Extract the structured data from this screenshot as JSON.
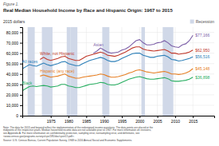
{
  "chart_data": {
    "type": "line",
    "title": "Real Median Household Income by Race and Hispanic Origin: 1967 to 2015",
    "subtitle": "Figure 1.",
    "y_label": "2015 dollars",
    "note": "Note: The data for 2013 and beyond reflect the implementation of the redesigned income questions. The data points are placed at the\nmidpoints of the respective years. Median household income data are not available prior to 1967. For more information on revisions,\nsee Appendix A. For more information on confidentiality protection, sampling error, nonsampling error, and definitions, see\n<www.census.gov/programs-surveys/cps/185/doc/cpstr15.pdf>.",
    "source": "Source: U.S. Census Bureau, Current Population Survey, 1968 to 2016 Annual Social and Economic Supplements.",
    "x": [
      1967,
      1968,
      1969,
      1970,
      1971,
      1972,
      1973,
      1974,
      1975,
      1976,
      1977,
      1978,
      1979,
      1980,
      1981,
      1982,
      1983,
      1984,
      1985,
      1986,
      1987,
      1988,
      1989,
      1990,
      1991,
      1992,
      1993,
      1994,
      1995,
      1996,
      1997,
      1998,
      1999,
      2000,
      2001,
      2002,
      2003,
      2004,
      2005,
      2006,
      2007,
      2008,
      2009,
      2010,
      2011,
      2012,
      2013,
      2014,
      2015
    ],
    "xlim": [
      1967,
      2021
    ],
    "xticks": [
      1975,
      1980,
      1985,
      1990,
      1995,
      2000,
      2005,
      2010,
      2015
    ],
    "ylim": [
      0,
      85000
    ],
    "yticks": [
      0,
      {
        "value": 10000,
        "label": "10,000"
      },
      {
        "value": 20000,
        "label": "20,000"
      },
      {
        "value": 30000,
        "label": "30,000"
      },
      {
        "value": 40000,
        "label": "40,000"
      },
      {
        "value": 50000,
        "label": "50,000"
      },
      {
        "value": 60000,
        "label": "60,000"
      },
      {
        "value": 70000,
        "label": "70,000"
      },
      {
        "value": 80000,
        "label": "80,000"
      }
    ],
    "grid": true,
    "legend": "upper right",
    "recessions": {
      "name": "Recession",
      "color": "#d0d8e8",
      "ranges": [
        [
          1969,
          1970
        ],
        [
          1973,
          1975
        ],
        [
          1980,
          1980
        ],
        [
          1981,
          1982
        ],
        [
          1990,
          1991
        ],
        [
          2001,
          2001
        ],
        [
          2007,
          2009
        ]
      ]
    },
    "series": [
      {
        "name": "Asian",
        "color": "#7b5ea7",
        "values": [
          null,
          null,
          null,
          null,
          null,
          null,
          null,
          null,
          null,
          null,
          null,
          null,
          null,
          null,
          null,
          null,
          null,
          null,
          null,
          null,
          60000,
          62000,
          65000,
          63000,
          61000,
          60000,
          60500,
          61000,
          63000,
          64000,
          66000,
          69000,
          72000,
          73000,
          70000,
          68000,
          68000,
          68500,
          70000,
          70500,
          72000,
          70000,
          67000,
          66000,
          65500,
          68000,
          69000,
          72000,
          77166
        ],
        "value_labels": [
          null,
          null,
          null,
          null,
          null,
          null,
          null,
          null,
          null,
          null,
          null,
          null,
          null,
          null,
          null,
          null,
          null,
          null,
          null,
          null,
          null,
          null,
          null,
          null,
          null,
          null,
          null,
          null,
          null,
          null,
          null,
          null,
          null,
          null,
          null,
          null,
          null,
          null,
          null,
          null,
          null,
          null,
          null,
          null,
          null,
          null,
          null,
          null,
          "$77,166"
        ]
      },
      {
        "name": "White, not Hispanic",
        "color": "#c0392b",
        "values": [
          null,
          null,
          null,
          null,
          null,
          54000,
          56000,
          54000,
          53000,
          54000,
          55000,
          56500,
          57000,
          55000,
          54000,
          53000,
          53000,
          55000,
          57000,
          58000,
          59000,
          60000,
          61000,
          60000,
          58000,
          57500,
          57000,
          58000,
          59500,
          61000,
          63000,
          65000,
          66000,
          66000,
          64000,
          63000,
          62500,
          62000,
          62500,
          63000,
          63500,
          62000,
          60000,
          60000,
          59000,
          59500,
          60000,
          61000,
          62950
        ],
        "value_labels": [
          null,
          null,
          null,
          null,
          null,
          null,
          null,
          null,
          null,
          null,
          null,
          null,
          null,
          null,
          null,
          null,
          null,
          null,
          null,
          null,
          null,
          null,
          null,
          null,
          null,
          null,
          null,
          null,
          null,
          null,
          null,
          null,
          null,
          null,
          null,
          null,
          null,
          null,
          null,
          null,
          null,
          null,
          null,
          null,
          null,
          null,
          null,
          null,
          "$62,950"
        ]
      },
      {
        "name": "All races",
        "color": "#2c7fb8",
        "values": [
          45000,
          47000,
          49000,
          48000,
          47500,
          49000,
          50500,
          49000,
          48000,
          49000,
          50000,
          51500,
          52000,
          50000,
          49000,
          48000,
          48000,
          50000,
          51500,
          53000,
          54000,
          55000,
          56000,
          55000,
          53000,
          52000,
          52000,
          53000,
          55000,
          56500,
          58000,
          59500,
          60000,
          60000,
          58000,
          57000,
          56000,
          56000,
          57000,
          57500,
          58000,
          56500,
          54000,
          53500,
          52500,
          53000,
          54000,
          55000,
          56516
        ],
        "value_labels": [
          null,
          null,
          null,
          null,
          null,
          null,
          null,
          null,
          null,
          null,
          null,
          null,
          null,
          null,
          null,
          null,
          null,
          null,
          null,
          null,
          null,
          null,
          null,
          null,
          null,
          null,
          null,
          null,
          null,
          null,
          null,
          null,
          null,
          null,
          null,
          null,
          null,
          null,
          null,
          null,
          null,
          null,
          null,
          null,
          null,
          null,
          null,
          null,
          "$56,516"
        ]
      },
      {
        "name": "Hispanic (any race)",
        "color": "#e67e22",
        "values": [
          null,
          null,
          null,
          null,
          null,
          38000,
          39000,
          38000,
          37000,
          37500,
          38000,
          39000,
          40000,
          38000,
          37000,
          36000,
          36000,
          37000,
          37500,
          38000,
          38500,
          39000,
          40000,
          39500,
          38000,
          37000,
          37000,
          37500,
          38500,
          39500,
          41000,
          42000,
          43500,
          44000,
          43000,
          42000,
          41500,
          41000,
          41500,
          42000,
          42500,
          41500,
          40000,
          40000,
          39500,
          40000,
          41000,
          42500,
          45148
        ],
        "value_labels": [
          null,
          null,
          null,
          null,
          null,
          null,
          null,
          null,
          null,
          null,
          null,
          null,
          null,
          null,
          null,
          null,
          null,
          null,
          null,
          null,
          null,
          null,
          null,
          null,
          null,
          null,
          null,
          null,
          null,
          null,
          null,
          null,
          null,
          null,
          null,
          null,
          null,
          null,
          null,
          null,
          null,
          null,
          null,
          null,
          null,
          null,
          null,
          null,
          "$45,148"
        ]
      },
      {
        "name": "Black",
        "color": "#27ae60",
        "values": [
          24000,
          26000,
          28000,
          28500,
          28000,
          28500,
          29000,
          28500,
          27500,
          28000,
          28500,
          30000,
          30000,
          28500,
          28000,
          27000,
          27000,
          28000,
          29000,
          30000,
          30500,
          31000,
          32000,
          31500,
          30000,
          29500,
          29500,
          30500,
          32000,
          33500,
          35000,
          36000,
          37000,
          37500,
          36500,
          35500,
          35000,
          35000,
          35500,
          36000,
          36500,
          35500,
          33500,
          33000,
          33000,
          33500,
          34000,
          35000,
          36898
        ],
        "value_labels": [
          null,
          null,
          null,
          null,
          null,
          null,
          null,
          null,
          null,
          null,
          null,
          null,
          null,
          null,
          null,
          null,
          null,
          null,
          null,
          null,
          null,
          null,
          null,
          null,
          null,
          null,
          null,
          null,
          null,
          null,
          null,
          null,
          null,
          null,
          null,
          null,
          null,
          null,
          null,
          null,
          null,
          null,
          null,
          null,
          null,
          null,
          null,
          null,
          "$36,898"
        ]
      }
    ]
  }
}
